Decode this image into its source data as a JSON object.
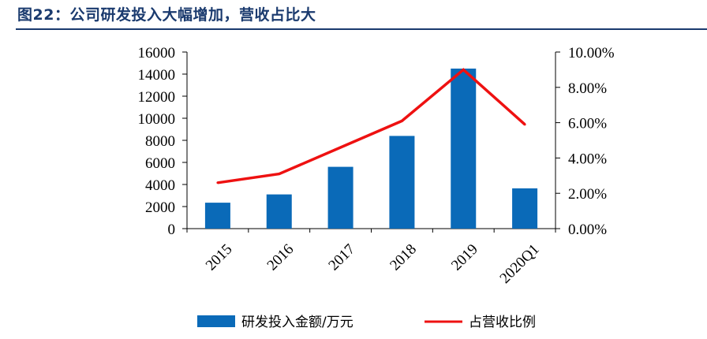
{
  "figure": {
    "title": "图22：公司研发投入大幅增加，营收占比大"
  },
  "chart_data": {
    "type": "bar",
    "categories": [
      "2015",
      "2016",
      "2017",
      "2018",
      "2019",
      "2020Q1"
    ],
    "series": [
      {
        "name": "研发投入金额/万元",
        "type": "bar",
        "axis": "left",
        "color": "#0a6ab8",
        "values": [
          2350,
          3100,
          5600,
          8400,
          14500,
          3650
        ]
      },
      {
        "name": "占营收比例",
        "type": "line",
        "axis": "right",
        "color": "#ee1111",
        "values": [
          2.6,
          3.1,
          4.6,
          6.1,
          9.0,
          5.9
        ]
      }
    ],
    "y_left": {
      "min": 0,
      "max": 16000,
      "ticks": [
        "0",
        "2000",
        "4000",
        "6000",
        "8000",
        "10000",
        "12000",
        "14000",
        "16000"
      ]
    },
    "y_right": {
      "min": 0,
      "max": 10,
      "ticks": [
        "0.00%",
        "2.00%",
        "4.00%",
        "6.00%",
        "8.00%",
        "10.00%"
      ]
    },
    "legend": [
      "研发投入金额/万元",
      "占营收比例"
    ],
    "legend_position": "bottom",
    "grid": false
  }
}
